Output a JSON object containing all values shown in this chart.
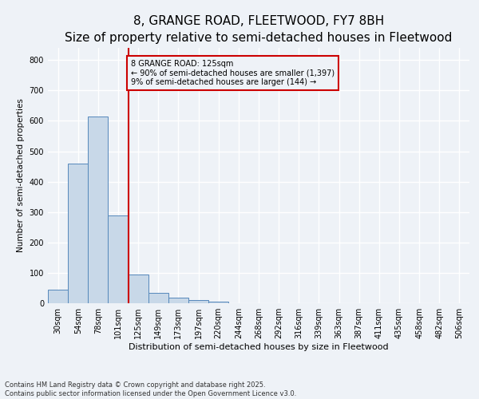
{
  "title": "8, GRANGE ROAD, FLEETWOOD, FY7 8BH",
  "subtitle": "Size of property relative to semi-detached houses in Fleetwood",
  "xlabel": "Distribution of semi-detached houses by size in Fleetwood",
  "ylabel": "Number of semi-detached properties",
  "bar_labels": [
    "30sqm",
    "54sqm",
    "78sqm",
    "101sqm",
    "125sqm",
    "149sqm",
    "173sqm",
    "197sqm",
    "220sqm",
    "244sqm",
    "268sqm",
    "292sqm",
    "316sqm",
    "339sqm",
    "363sqm",
    "387sqm",
    "411sqm",
    "435sqm",
    "458sqm",
    "482sqm",
    "506sqm"
  ],
  "bar_values": [
    45,
    460,
    615,
    290,
    95,
    35,
    18,
    10,
    5,
    0,
    0,
    0,
    0,
    0,
    0,
    0,
    0,
    0,
    0,
    0,
    0
  ],
  "bar_color": "#c8d8e8",
  "bar_edge_color": "#5588bb",
  "subject_bin_index": 4,
  "vline_color": "#cc0000",
  "annotation_text": "8 GRANGE ROAD: 125sqm\n← 90% of semi-detached houses are smaller (1,397)\n9% of semi-detached houses are larger (144) →",
  "annotation_box_color": "#cc0000",
  "ylim": [
    0,
    840
  ],
  "yticks": [
    0,
    100,
    200,
    300,
    400,
    500,
    600,
    700,
    800
  ],
  "background_color": "#eef2f7",
  "grid_color": "#ffffff",
  "footer": "Contains HM Land Registry data © Crown copyright and database right 2025.\nContains public sector information licensed under the Open Government Licence v3.0.",
  "title_fontsize": 11,
  "subtitle_fontsize": 9,
  "xlabel_fontsize": 8,
  "ylabel_fontsize": 7.5,
  "tick_fontsize": 7,
  "annotation_fontsize": 7,
  "footer_fontsize": 6
}
